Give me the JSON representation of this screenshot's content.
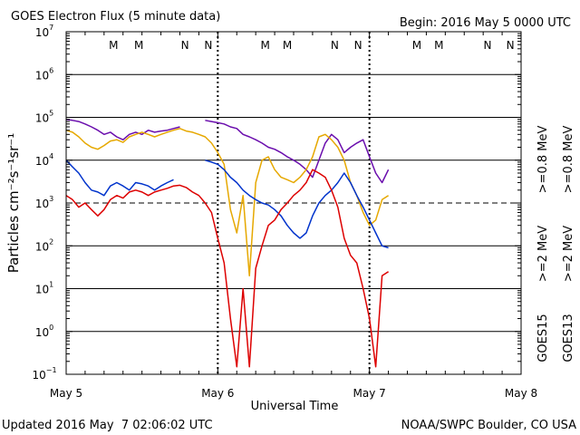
{
  "chart_data": {
    "type": "line",
    "title": "GOES Electron Flux (5 minute data)",
    "begin_label": "Begin: 2016 May 5 0000 UTC",
    "xlabel": "Universal Time",
    "ylabel": "Particles cm⁻²s⁻¹sr⁻¹",
    "yscale": "log",
    "ylim": [
      0.1,
      10000000
    ],
    "xlim": [
      0,
      72
    ],
    "x_units": "hours since 2016 May 5 0000 UTC",
    "x_ticks": [
      {
        "x": 0,
        "label": "May 5"
      },
      {
        "x": 24,
        "label": "May 6"
      },
      {
        "x": 48,
        "label": "May 7"
      },
      {
        "x": 72,
        "label": "May 8"
      }
    ],
    "y_ticks": [
      {
        "v": 0.1,
        "base": "10",
        "exp": "−1"
      },
      {
        "v": 1,
        "base": "10",
        "exp": "0"
      },
      {
        "v": 10,
        "base": "10",
        "exp": "1"
      },
      {
        "v": 100,
        "base": "10",
        "exp": "2"
      },
      {
        "v": 1000,
        "base": "10",
        "exp": "3"
      },
      {
        "v": 10000,
        "base": "10",
        "exp": "4"
      },
      {
        "v": 100000,
        "base": "10",
        "exp": "5"
      },
      {
        "v": 1000000,
        "base": "10",
        "exp": "6"
      },
      {
        "v": 10000000,
        "base": "10",
        "exp": "7"
      }
    ],
    "grid": "horizontal",
    "threshold": 1000,
    "day_boundaries": [
      24,
      48
    ],
    "markers": [
      {
        "x": 7.5,
        "label": "M",
        "color": "#cc0000"
      },
      {
        "x": 11.5,
        "label": "M",
        "color": "#0000cc"
      },
      {
        "x": 18.8,
        "label": "N",
        "color": "#cc0000"
      },
      {
        "x": 22.5,
        "label": "N",
        "color": "#0000cc"
      },
      {
        "x": 31.5,
        "label": "M",
        "color": "#cc0000"
      },
      {
        "x": 35.0,
        "label": "M",
        "color": "#0000cc"
      },
      {
        "x": 42.5,
        "label": "N",
        "color": "#cc0000"
      },
      {
        "x": 46.2,
        "label": "N",
        "color": "#0000cc"
      },
      {
        "x": 55.5,
        "label": "M",
        "color": "#cc0000"
      },
      {
        "x": 59.0,
        "label": "M",
        "color": "#0000cc"
      },
      {
        "x": 66.7,
        "label": "N",
        "color": "#cc0000"
      },
      {
        "x": 70.3,
        "label": "N",
        "color": "#0000cc"
      }
    ],
    "legend": {
      "goes15_label": "GOES15",
      "goes13_label": "GOES13",
      "entries": [
        {
          "text": ">=0.8 MeV",
          "color": "#6a0dad",
          "satellite": "GOES15"
        },
        {
          "text": ">=0.8 MeV",
          "color": "#e6a800",
          "satellite": "GOES13"
        },
        {
          "text": ">=2 MeV",
          "color": "#0033cc",
          "satellite": "GOES15"
        },
        {
          "text": ">=2 MeV",
          "color": "#dd0000",
          "satellite": "GOES13"
        }
      ]
    },
    "series": [
      {
        "name": "GOES15 >=0.8 MeV",
        "color": "#6a0dad",
        "segments": [
          [
            [
              0,
              90000
            ],
            [
              1,
              85000
            ],
            [
              2,
              80000
            ],
            [
              3,
              70000
            ],
            [
              4,
              60000
            ],
            [
              5,
              50000
            ],
            [
              6,
              40000
            ],
            [
              7,
              45000
            ],
            [
              8,
              35000
            ],
            [
              9,
              30000
            ],
            [
              10,
              40000
            ],
            [
              11,
              45000
            ],
            [
              12,
              40000
            ],
            [
              13,
              50000
            ],
            [
              14,
              45000
            ],
            [
              15,
              48000
            ],
            [
              16,
              50000
            ],
            [
              17,
              55000
            ],
            [
              18,
              60000
            ]
          ],
          [
            [
              22,
              85000
            ],
            [
              23,
              80000
            ],
            [
              24,
              75000
            ],
            [
              25,
              70000
            ],
            [
              26,
              60000
            ],
            [
              27,
              55000
            ],
            [
              28,
              40000
            ],
            [
              29,
              35000
            ],
            [
              30,
              30000
            ],
            [
              31,
              25000
            ],
            [
              32,
              20000
            ],
            [
              33,
              18000
            ],
            [
              34,
              15000
            ],
            [
              35,
              12000
            ],
            [
              36,
              10000
            ],
            [
              37,
              8000
            ],
            [
              38,
              6000
            ],
            [
              39,
              4000
            ],
            [
              40,
              10000
            ],
            [
              41,
              25000
            ],
            [
              42,
              40000
            ],
            [
              43,
              30000
            ],
            [
              44,
              15000
            ],
            [
              45,
              20000
            ],
            [
              46,
              25000
            ],
            [
              47,
              30000
            ],
            [
              48,
              12000
            ],
            [
              49,
              5000
            ],
            [
              50,
              3000
            ],
            [
              51,
              6000
            ]
          ]
        ]
      },
      {
        "name": "GOES13 >=0.8 MeV",
        "color": "#e6a800",
        "segments": [
          [
            [
              0,
              50000
            ],
            [
              1,
              45000
            ],
            [
              2,
              35000
            ],
            [
              3,
              25000
            ],
            [
              4,
              20000
            ],
            [
              5,
              18000
            ],
            [
              6,
              22000
            ],
            [
              7,
              28000
            ],
            [
              8,
              30000
            ],
            [
              9,
              26000
            ],
            [
              10,
              35000
            ],
            [
              11,
              40000
            ],
            [
              12,
              45000
            ],
            [
              13,
              40000
            ],
            [
              14,
              35000
            ],
            [
              15,
              40000
            ],
            [
              16,
              45000
            ],
            [
              17,
              50000
            ],
            [
              18,
              55000
            ],
            [
              19,
              48000
            ],
            [
              20,
              45000
            ],
            [
              21,
              40000
            ],
            [
              22,
              35000
            ],
            [
              23,
              25000
            ],
            [
              24,
              15000
            ],
            [
              25,
              8000
            ],
            [
              26,
              700
            ],
            [
              27,
              200
            ],
            [
              28,
              1500
            ],
            [
              29,
              20
            ],
            [
              30,
              3000
            ],
            [
              31,
              10000
            ],
            [
              32,
              12000
            ],
            [
              33,
              6000
            ],
            [
              34,
              4000
            ],
            [
              35,
              3500
            ],
            [
              36,
              3000
            ],
            [
              37,
              4000
            ],
            [
              38,
              6000
            ],
            [
              39,
              12000
            ],
            [
              40,
              35000
            ],
            [
              41,
              40000
            ],
            [
              42,
              30000
            ],
            [
              43,
              20000
            ],
            [
              44,
              10000
            ],
            [
              45,
              3000
            ],
            [
              46,
              1500
            ],
            [
              47,
              600
            ],
            [
              48,
              300
            ],
            [
              49,
              400
            ],
            [
              50,
              1200
            ],
            [
              51,
              1500
            ]
          ]
        ]
      },
      {
        "name": "GOES15 >=2 MeV",
        "color": "#0033cc",
        "segments": [
          [
            [
              0,
              10000
            ],
            [
              1,
              7000
            ],
            [
              2,
              5000
            ],
            [
              3,
              3000
            ],
            [
              4,
              2000
            ],
            [
              5,
              1800
            ],
            [
              6,
              1500
            ],
            [
              7,
              2500
            ],
            [
              8,
              3000
            ],
            [
              9,
              2500
            ],
            [
              10,
              2000
            ],
            [
              11,
              3000
            ],
            [
              12,
              2800
            ],
            [
              13,
              2500
            ],
            [
              14,
              2000
            ],
            [
              15,
              2500
            ],
            [
              16,
              3000
            ],
            [
              17,
              3500
            ]
          ],
          [
            [
              22,
              10000
            ],
            [
              23,
              9000
            ],
            [
              24,
              8000
            ],
            [
              25,
              6000
            ],
            [
              26,
              4000
            ],
            [
              27,
              3000
            ],
            [
              28,
              2000
            ],
            [
              29,
              1500
            ],
            [
              30,
              1200
            ],
            [
              31,
              1000
            ],
            [
              32,
              900
            ],
            [
              33,
              700
            ],
            [
              34,
              500
            ],
            [
              35,
              300
            ],
            [
              36,
              200
            ],
            [
              37,
              150
            ],
            [
              38,
              200
            ],
            [
              39,
              500
            ],
            [
              40,
              1000
            ],
            [
              41,
              1500
            ],
            [
              42,
              2000
            ],
            [
              43,
              3000
            ],
            [
              44,
              5000
            ],
            [
              45,
              3000
            ],
            [
              46,
              1500
            ],
            [
              47,
              800
            ],
            [
              48,
              400
            ],
            [
              49,
              200
            ],
            [
              50,
              100
            ],
            [
              51,
              90
            ]
          ]
        ]
      },
      {
        "name": "GOES13 >=2 MeV",
        "color": "#dd0000",
        "segments": [
          [
            [
              0,
              1500
            ],
            [
              1,
              1200
            ],
            [
              2,
              800
            ],
            [
              3,
              1000
            ],
            [
              4,
              700
            ],
            [
              5,
              500
            ],
            [
              6,
              700
            ],
            [
              7,
              1200
            ],
            [
              8,
              1500
            ],
            [
              9,
              1300
            ],
            [
              10,
              1800
            ],
            [
              11,
              2000
            ],
            [
              12,
              1800
            ],
            [
              13,
              1500
            ],
            [
              14,
              1800
            ],
            [
              15,
              2000
            ],
            [
              16,
              2200
            ],
            [
              17,
              2500
            ],
            [
              18,
              2600
            ],
            [
              19,
              2300
            ],
            [
              20,
              1800
            ],
            [
              21,
              1500
            ],
            [
              22,
              1000
            ],
            [
              23,
              600
            ],
            [
              24,
              150
            ],
            [
              25,
              40
            ],
            [
              26,
              2
            ],
            [
              27,
              0.15
            ],
            [
              28,
              10
            ],
            [
              29,
              0.15
            ],
            [
              30,
              30
            ],
            [
              31,
              100
            ],
            [
              32,
              300
            ],
            [
              33,
              400
            ],
            [
              34,
              700
            ],
            [
              35,
              1000
            ],
            [
              36,
              1500
            ],
            [
              37,
              2000
            ],
            [
              38,
              3000
            ],
            [
              39,
              6000
            ],
            [
              40,
              5000
            ],
            [
              41,
              4000
            ],
            [
              42,
              2000
            ],
            [
              43,
              800
            ],
            [
              44,
              150
            ],
            [
              45,
              60
            ],
            [
              46,
              40
            ],
            [
              47,
              10
            ],
            [
              48,
              2
            ],
            [
              49,
              0.15
            ],
            [
              50,
              20
            ],
            [
              51,
              25
            ]
          ]
        ]
      }
    ]
  },
  "footer": {
    "updated": "Updated 2016 May  7 02:06:02 UTC",
    "credit": "NOAA/SWPC Boulder, CO USA"
  }
}
